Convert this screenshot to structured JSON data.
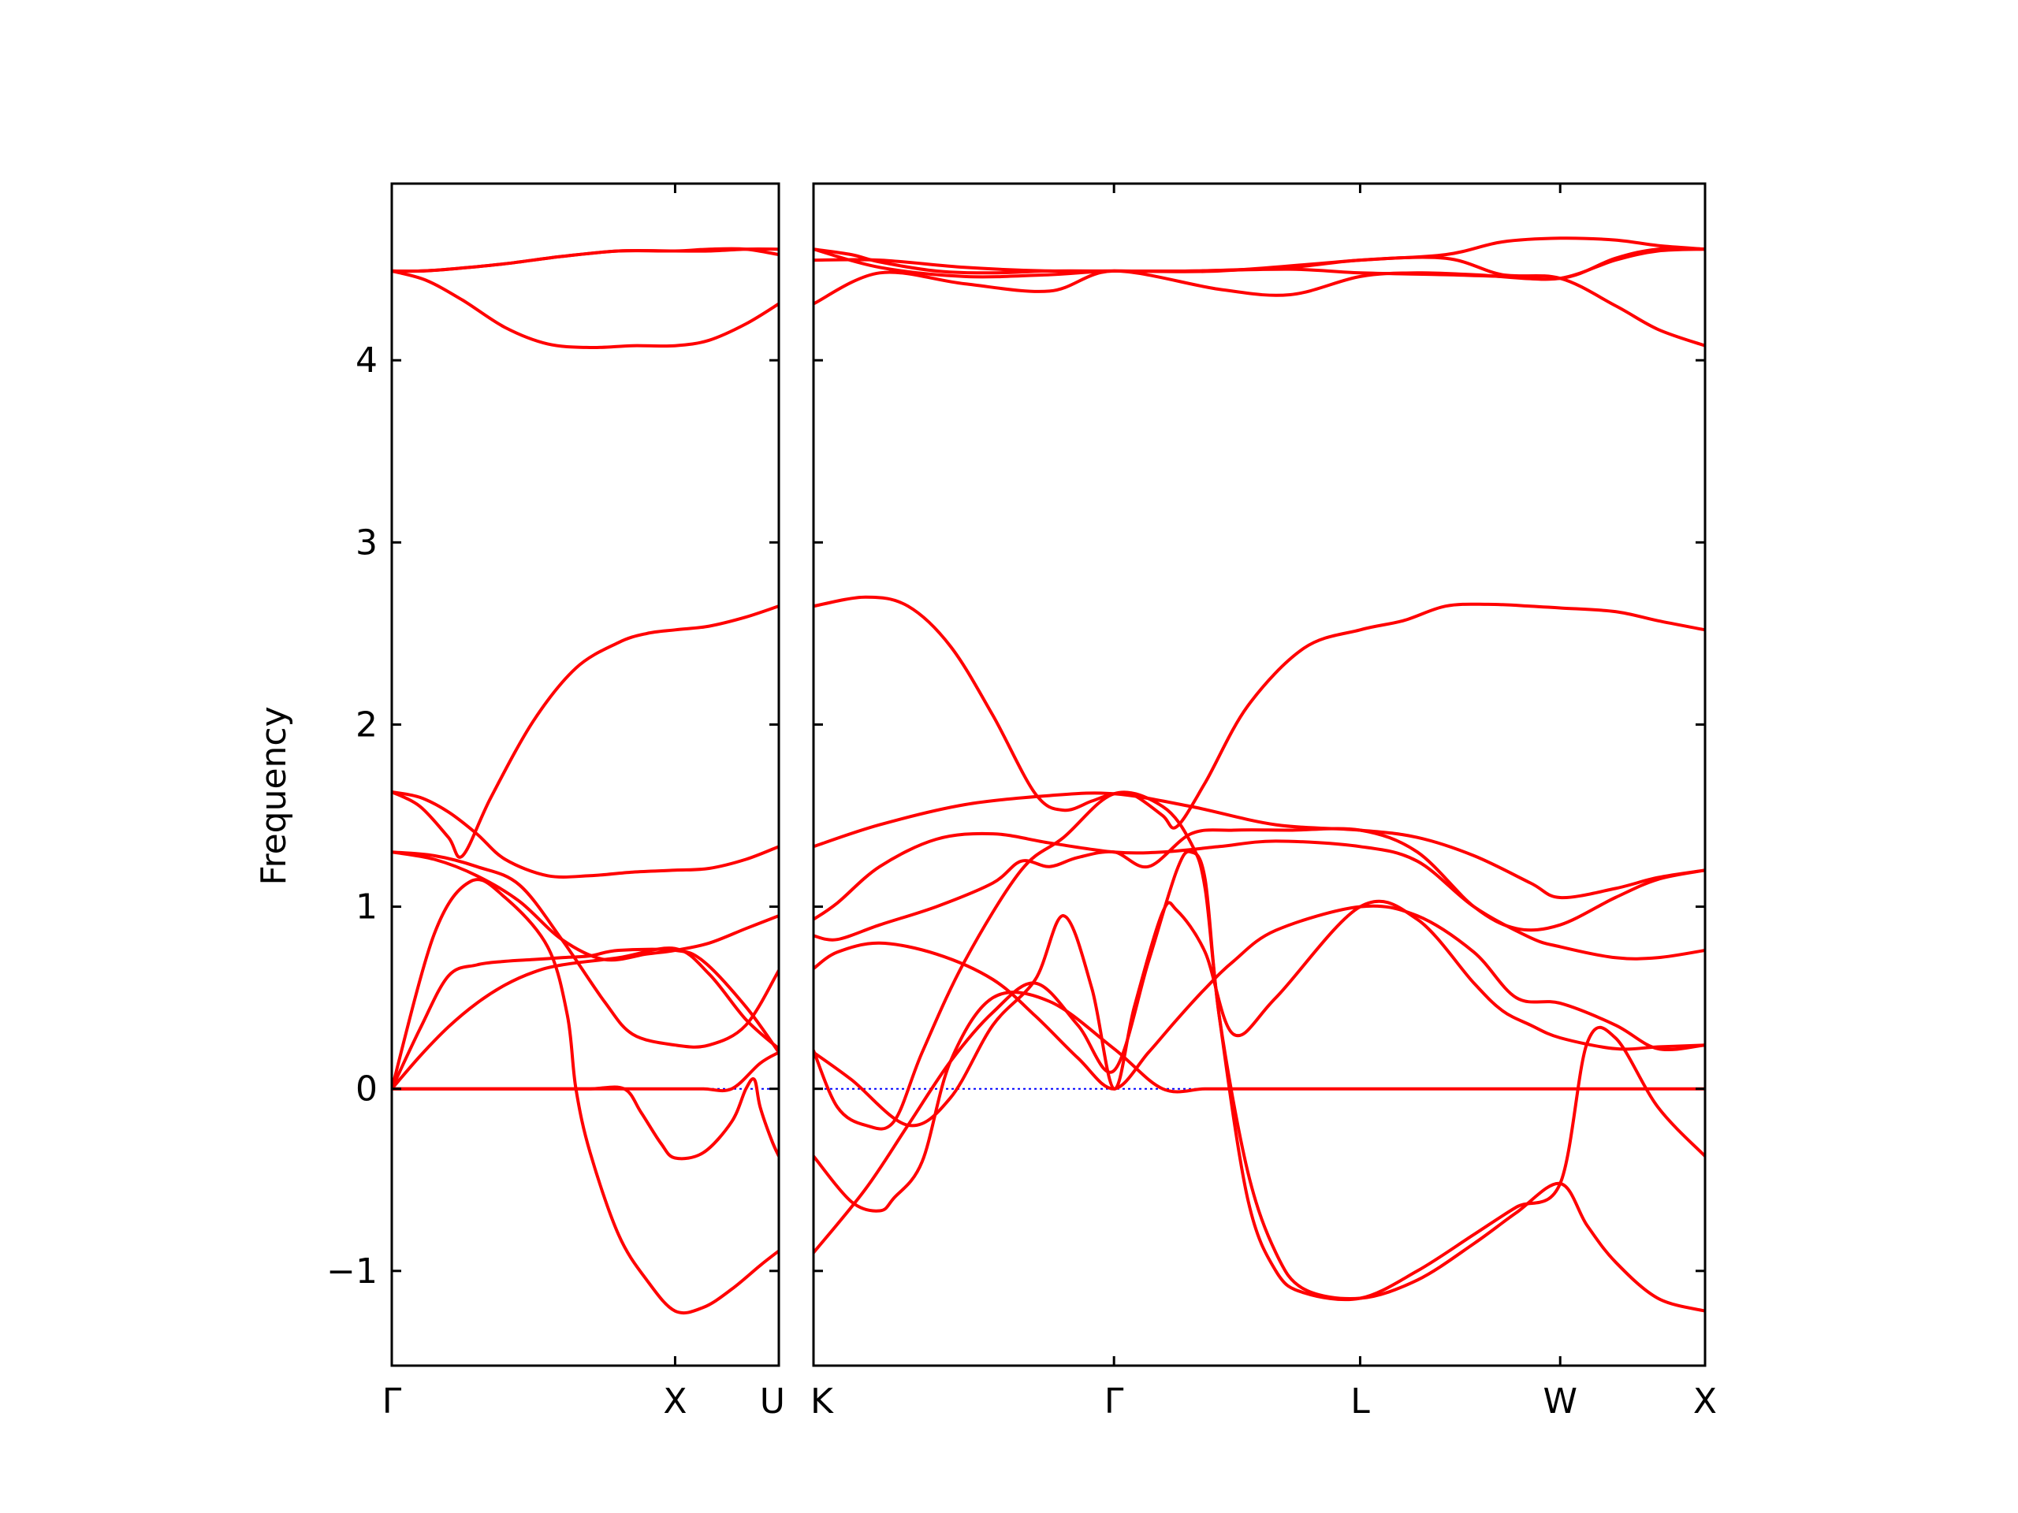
{
  "chart_data": {
    "type": "line",
    "title": "",
    "xlabel": "",
    "ylabel": "Frequency",
    "ylim": [
      -1.52,
      4.97
    ],
    "yticks": [
      -1,
      0,
      1,
      2,
      3,
      4
    ],
    "ytick_labels": [
      "−1",
      "0",
      "1",
      "2",
      "3",
      "4"
    ],
    "line_color": "#ff0000",
    "zero_line_color": "#0000ff",
    "panels": [
      {
        "xlim": [
          0,
          1.366
        ],
        "ticks": [
          0,
          1.0
        ],
        "tick_labels": [
          "Γ",
          "X"
        ],
        "end_label": "U",
        "series": [
          {
            "x": [
              0,
              0.1,
              0.2,
              0.4,
              0.6,
              0.8,
              1.0,
              1.12,
              1.25,
              1.366
            ],
            "y": [
              4.49,
              4.49,
              4.5,
              4.53,
              4.57,
              4.6,
              4.6,
              4.6,
              4.61,
              4.61
            ]
          },
          {
            "x": [
              0,
              0.1,
              0.2,
              0.4,
              0.6,
              0.8,
              1.0,
              1.12,
              1.25,
              1.366
            ],
            "y": [
              4.49,
              4.49,
              4.5,
              4.53,
              4.57,
              4.6,
              4.6,
              4.61,
              4.61,
              4.58
            ]
          },
          {
            "x": [
              0,
              0.12,
              0.25,
              0.4,
              0.55,
              0.7,
              0.85,
              1.0,
              1.12,
              1.25,
              1.366
            ],
            "y": [
              4.49,
              4.44,
              4.33,
              4.18,
              4.09,
              4.07,
              4.08,
              4.08,
              4.11,
              4.2,
              4.31
            ]
          },
          {
            "x": [
              0,
              0.1,
              0.2,
              0.25,
              0.35,
              0.5,
              0.65,
              0.8,
              0.9,
              1.0,
              1.12,
              1.25,
              1.366
            ],
            "y": [
              1.63,
              1.55,
              1.38,
              1.28,
              1.6,
              2.02,
              2.31,
              2.45,
              2.5,
              2.52,
              2.54,
              2.59,
              2.65
            ]
          },
          {
            "x": [
              0,
              0.1,
              0.2,
              0.3,
              0.4,
              0.55,
              0.7,
              0.85,
              1.0,
              1.12,
              1.25,
              1.366
            ],
            "y": [
              1.63,
              1.6,
              1.52,
              1.4,
              1.26,
              1.17,
              1.17,
              1.19,
              1.2,
              1.21,
              1.26,
              1.33
            ]
          },
          {
            "x": [
              0,
              0.15,
              0.3,
              0.45,
              0.6,
              0.75,
              0.85,
              1.0,
              1.12,
              1.25,
              1.366
            ],
            "y": [
              1.3,
              1.28,
              1.22,
              1.12,
              0.82,
              0.48,
              0.3,
              0.24,
              0.24,
              0.35,
              0.65
            ]
          },
          {
            "x": [
              0,
              0.15,
              0.3,
              0.45,
              0.6,
              0.75,
              0.9,
              1.0,
              1.12,
              1.25,
              1.366
            ],
            "y": [
              1.3,
              1.26,
              1.17,
              1.03,
              0.82,
              0.71,
              0.74,
              0.76,
              0.8,
              0.88,
              0.95
            ]
          },
          {
            "x": [
              0,
              0.1,
              0.2,
              0.3,
              0.4,
              0.5,
              0.6,
              0.7,
              0.8,
              1.0,
              1.1,
              1.25,
              1.366
            ],
            "y": [
              0,
              0.33,
              0.62,
              0.68,
              0.7,
              0.71,
              0.72,
              0.73,
              0.76,
              0.76,
              0.7,
              0.45,
              0.2
            ]
          },
          {
            "x": [
              0,
              0.1,
              0.2,
              0.3,
              0.4,
              0.5,
              0.6,
              0.8,
              1.0,
              1.12,
              1.25,
              1.366
            ],
            "y": [
              0,
              0.18,
              0.34,
              0.47,
              0.57,
              0.64,
              0.68,
              0.72,
              0.77,
              0.63,
              0.38,
              0.22
            ]
          },
          {
            "x": [
              0,
              0.15,
              0.28,
              0.4,
              0.55,
              0.62,
              0.65,
              0.7,
              0.8,
              0.9,
              1.0,
              1.1,
              1.2,
              1.3,
              1.366
            ],
            "y": [
              0,
              0.85,
              1.14,
              1.05,
              0.78,
              0.4,
              0,
              -0.35,
              -0.8,
              -1.05,
              -1.22,
              -1.2,
              -1.1,
              -0.97,
              -0.89
            ]
          },
          {
            "x": [
              0,
              0.55,
              0.7,
              0.82,
              0.88,
              0.95,
              1.0,
              1.1,
              1.2,
              1.25,
              1.28,
              1.3,
              1.34,
              1.366
            ],
            "y": [
              0,
              0,
              0,
              0,
              -0.13,
              -0.3,
              -0.38,
              -0.35,
              -0.18,
              0,
              0.05,
              -0.1,
              -0.28,
              -0.37
            ]
          },
          {
            "x": [
              0,
              0.4,
              0.8,
              1.0,
              1.1,
              1.2,
              1.3,
              1.366
            ],
            "y": [
              0,
              0,
              0,
              0,
              0,
              0,
              0.14,
              0.2
            ]
          }
        ]
      },
      {
        "xlim": [
          1.366,
          4.517
        ],
        "ticks": [
          1.366,
          2.428,
          3.298,
          4.005,
          4.517
        ],
        "tick_labels": [
          "K",
          "Γ",
          "L",
          "W",
          "X"
        ],
        "series": [
          {
            "x": [
              1.366,
              1.6,
              1.9,
              2.2,
              2.428,
              2.8,
              3.05,
              3.298,
              3.5,
              3.7,
              4.005,
              4.2,
              4.35,
              4.517
            ],
            "y": [
              4.31,
              4.48,
              4.42,
              4.38,
              4.49,
              4.39,
              4.36,
              4.46,
              4.48,
              4.47,
              4.45,
              4.56,
              4.61,
              4.61
            ]
          },
          {
            "x": [
              1.366,
              1.6,
              1.9,
              2.2,
              2.428,
              2.7,
              3.05,
              3.298,
              3.6,
              3.8,
              4.005,
              4.2,
              4.35,
              4.517
            ],
            "y": [
              4.55,
              4.55,
              4.51,
              4.49,
              4.49,
              4.49,
              4.51,
              4.55,
              4.56,
              4.47,
              4.45,
              4.3,
              4.17,
              4.08
            ]
          },
          {
            "x": [
              1.366,
              1.6,
              1.9,
              2.2,
              2.428,
              2.8,
              3.298,
              3.6,
              3.8,
              4.005,
              4.2,
              4.35,
              4.517
            ],
            "y": [
              4.61,
              4.51,
              4.46,
              4.47,
              4.49,
              4.49,
              4.55,
              4.58,
              4.65,
              4.67,
              4.66,
              4.63,
              4.61
            ]
          },
          {
            "x": [
              1.366,
              1.5,
              1.6,
              1.8,
              2.0,
              2.2,
              2.428,
              2.7,
              3.05,
              3.298,
              3.6,
              3.8,
              4.005,
              4.2,
              4.35,
              4.517
            ],
            "y": [
              4.61,
              4.58,
              4.54,
              4.49,
              4.48,
              4.49,
              4.49,
              4.49,
              4.5,
              4.48,
              4.47,
              4.46,
              4.45,
              4.55,
              4.6,
              4.61
            ]
          },
          {
            "x": [
              1.366,
              1.55,
              1.7,
              1.85,
              2.0,
              2.15,
              2.25,
              2.35,
              2.428,
              2.5,
              2.6,
              2.65,
              2.75,
              2.9,
              3.1,
              3.298,
              3.45,
              3.6,
              3.75,
              3.9,
              4.005,
              4.2,
              4.35,
              4.517
            ],
            "y": [
              2.65,
              2.7,
              2.65,
              2.43,
              2.05,
              1.62,
              1.53,
              1.58,
              1.62,
              1.61,
              1.5,
              1.44,
              1.68,
              2.1,
              2.42,
              2.52,
              2.57,
              2.65,
              2.66,
              2.65,
              2.64,
              2.62,
              2.57,
              2.52
            ]
          },
          {
            "x": [
              1.366,
              1.6,
              1.9,
              2.2,
              2.428,
              2.7,
              3.0,
              3.298,
              3.5,
              3.7,
              3.9,
              4.005,
              4.2,
              4.35,
              4.517
            ],
            "y": [
              1.33,
              1.45,
              1.56,
              1.61,
              1.62,
              1.55,
              1.45,
              1.42,
              1.38,
              1.28,
              1.13,
              1.05,
              1.1,
              1.16,
              1.2
            ]
          },
          {
            "x": [
              1.366,
              1.45,
              1.6,
              1.8,
              2.0,
              2.2,
              2.428,
              2.6,
              2.8,
              3.0,
              3.298,
              3.5,
              3.7,
              3.9,
              4.005,
              4.2,
              4.35,
              4.517
            ],
            "y": [
              0.93,
              1.02,
              1.22,
              1.37,
              1.4,
              1.35,
              1.3,
              1.3,
              1.33,
              1.36,
              1.33,
              1.25,
              1.0,
              0.83,
              0.78,
              0.72,
              0.72,
              0.76
            ]
          },
          {
            "x": [
              1.366,
              1.45,
              1.6,
              1.8,
              2.0,
              2.1,
              2.2,
              2.3,
              2.428,
              2.55,
              2.7,
              2.85,
              3.05,
              3.298,
              3.5,
              3.7,
              3.85,
              4.005,
              4.2,
              4.35,
              4.517
            ],
            "y": [
              0.84,
              0.82,
              0.9,
              1.0,
              1.13,
              1.25,
              1.22,
              1.27,
              1.3,
              1.22,
              1.4,
              1.42,
              1.42,
              1.42,
              1.3,
              1.0,
              0.88,
              0.9,
              1.05,
              1.15,
              1.2
            ]
          },
          {
            "x": [
              1.366,
              1.45,
              1.6,
              1.8,
              2.0,
              2.15,
              2.3,
              2.428,
              2.55,
              2.65,
              2.75,
              2.85,
              3.0,
              3.298,
              3.5,
              3.7,
              3.85,
              4.005,
              4.2,
              4.35,
              4.517
            ],
            "y": [
              0.66,
              0.75,
              0.8,
              0.74,
              0.6,
              0.4,
              0.17,
              0,
              0.2,
              0.38,
              0.55,
              0.7,
              0.87,
              1.0,
              0.95,
              0.75,
              0.5,
              0.47,
              0.35,
              0.22,
              0.24
            ]
          },
          {
            "x": [
              1.366,
              1.5,
              1.7,
              1.85,
              2.0,
              2.15,
              2.25,
              2.35,
              2.428,
              2.5,
              2.6,
              2.65,
              2.75,
              2.85,
              3.0,
              3.298,
              3.5,
              3.7,
              3.8,
              3.9,
              4.005,
              4.2,
              4.35,
              4.517
            ],
            "y": [
              0.2,
              0.05,
              -0.2,
              -0.05,
              0.35,
              0.6,
              0.95,
              0.55,
              0,
              0.45,
              0.97,
              0.98,
              0.75,
              0.3,
              0.5,
              1.0,
              0.93,
              0.58,
              0.43,
              0.35,
              0.28,
              0.22,
              0.23,
              0.24
            ]
          },
          {
            "x": [
              1.366,
              1.45,
              1.55,
              1.65,
              1.75,
              1.9,
              2.1,
              2.25,
              2.428,
              2.6,
              2.7,
              2.75,
              2.8,
              2.9,
              3.0,
              3.1,
              3.298,
              3.5,
              3.7,
              3.85,
              4.005,
              4.1,
              4.2,
              4.35,
              4.517
            ],
            "y": [
              0.21,
              -0.1,
              -0.2,
              -0.18,
              0.2,
              0.7,
              1.2,
              1.38,
              1.62,
              1.55,
              1.35,
              1.1,
              0.4,
              -0.6,
              -1.0,
              -1.12,
              -1.15,
              -1.0,
              -0.8,
              -0.65,
              -0.52,
              0.25,
              0.28,
              -0.1,
              -0.37
            ]
          },
          {
            "x": [
              1.366,
              1.55,
              1.7,
              1.85,
              2.0,
              2.15,
              2.3,
              2.428,
              2.55,
              2.65,
              2.7,
              2.75,
              2.8,
              2.9,
              3.0,
              3.1,
              3.298,
              3.5,
              3.7,
              3.85,
              4.005,
              4.1,
              4.2,
              4.35,
              4.517
            ],
            "y": [
              -0.9,
              -0.55,
              -0.2,
              0.15,
              0.42,
              0.58,
              0.35,
              0.1,
              0.7,
              1.2,
              1.3,
              1.15,
              0.4,
              -0.45,
              -0.9,
              -1.1,
              -1.15,
              -1.05,
              -0.85,
              -0.68,
              -0.52,
              -0.75,
              -0.95,
              -1.15,
              -1.22
            ]
          },
          {
            "x": [
              1.366,
              1.5,
              1.6,
              1.65,
              1.75,
              1.85,
              2.0,
              2.2,
              2.428,
              2.6,
              2.75,
              2.9,
              3.05,
              3.298,
              3.5,
              3.7,
              3.9,
              4.005,
              4.2,
              4.35,
              4.517
            ],
            "y": [
              -0.37,
              -0.62,
              -0.67,
              -0.6,
              -0.4,
              0.15,
              0.5,
              0.48,
              0.22,
              0,
              0,
              0,
              0,
              0,
              0,
              0,
              0,
              0,
              0,
              0,
              0
            ]
          }
        ]
      }
    ]
  }
}
